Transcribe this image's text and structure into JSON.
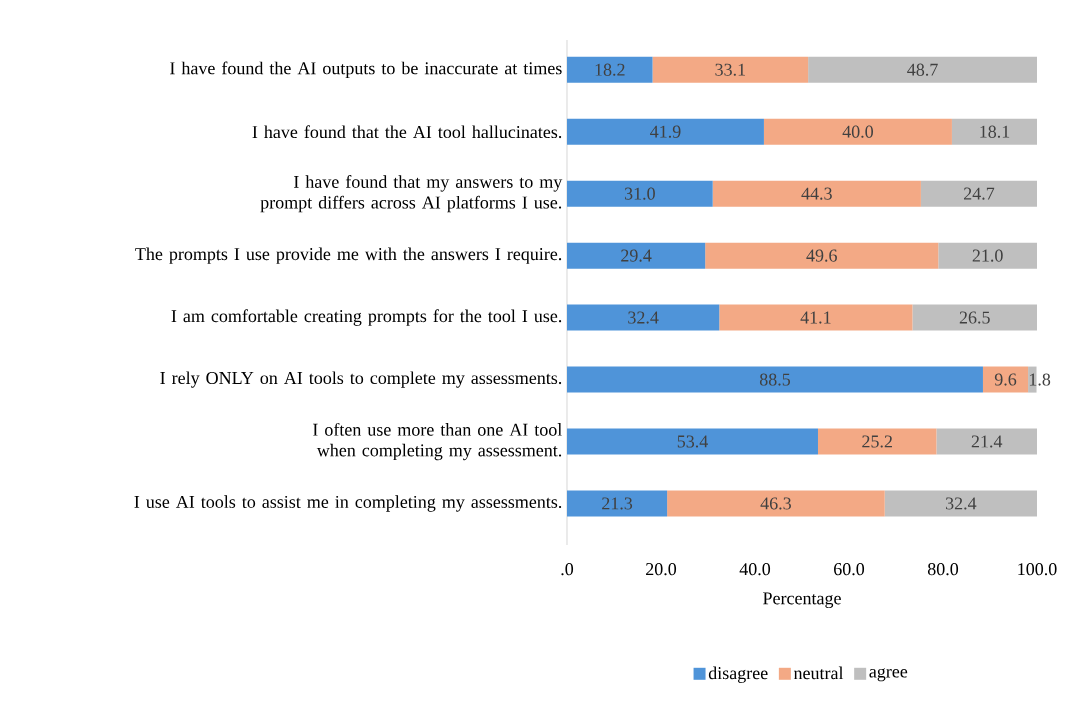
{
  "chart_data": {
    "type": "bar",
    "orientation": "horizontal",
    "stacked": true,
    "categories": [
      "I have found the AI outputs to be inaccurate at times",
      "I have found that the AI tool hallucinates.",
      "I have found that my answers to my prompt differs across AI platforms I use.",
      "The prompts I use provide me with the answers I require.",
      "I am comfortable creating prompts for the tool I use.",
      "I rely ONLY on AI tools to complete my assessments.",
      "I often use more than one AI tool when completing my assessment.",
      "I use AI tools to assist me in completing my assessments."
    ],
    "series": [
      {
        "name": "disagree",
        "color": "#4f94d9",
        "values": [
          18.2,
          41.9,
          31.0,
          29.4,
          32.4,
          88.5,
          53.4,
          21.3
        ],
        "value_labels": [
          "18.2",
          "41.9",
          "31.0",
          "29.4",
          "32.4",
          "88.5",
          "53.4",
          "21.3"
        ]
      },
      {
        "name": "neutral",
        "color": "#f3a985",
        "values": [
          33.1,
          40.0,
          44.3,
          49.6,
          41.1,
          9.6,
          25.2,
          46.3
        ],
        "value_labels": [
          "33.1",
          "40.0",
          "44.3",
          "49.6",
          "41.1",
          "9.6",
          "25.2",
          "46.3"
        ]
      },
      {
        "name": "agree",
        "color": "#bfbfbf",
        "values": [
          48.7,
          18.1,
          24.7,
          21.0,
          26.5,
          1.8,
          21.4,
          32.4
        ],
        "value_labels": [
          "48.7",
          "18.1",
          "24.7",
          "21.0",
          "26.5",
          "1.8",
          "21.4",
          "32.4"
        ]
      }
    ],
    "xlim": [
      0,
      100
    ],
    "xticks": [
      {
        "value": 0,
        "label": ".0"
      },
      {
        "value": 20,
        "label": "20.0"
      },
      {
        "value": 40,
        "label": "40.0"
      },
      {
        "value": 60,
        "label": "60.0"
      },
      {
        "value": 80,
        "label": "80.0"
      },
      {
        "value": 100,
        "label": "100.0"
      }
    ],
    "xlabel": "Percentage",
    "legend": "bottom"
  }
}
